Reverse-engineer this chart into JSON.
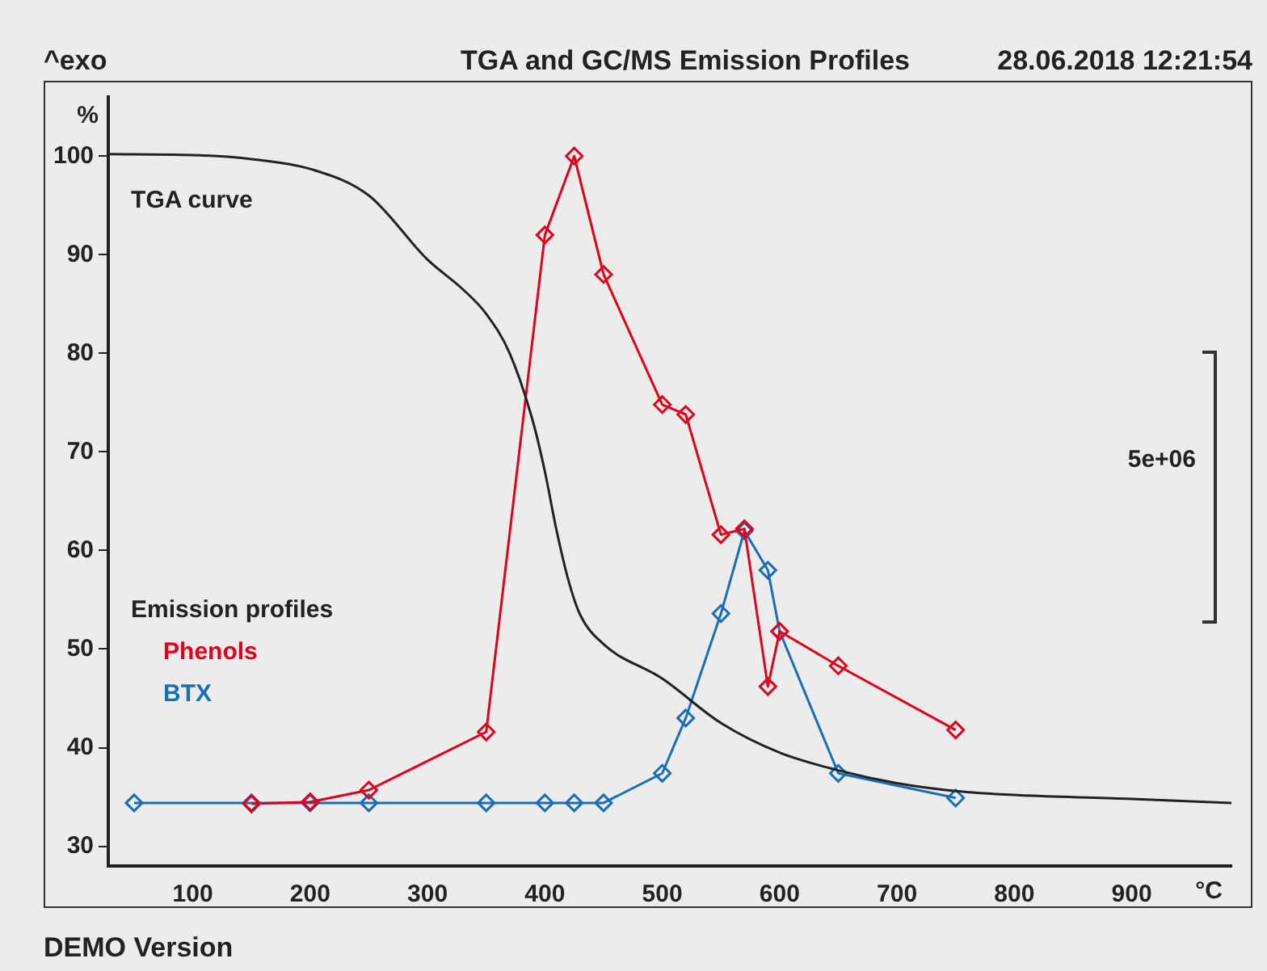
{
  "chart_data": {
    "type": "line",
    "title": "TGA and GC/MS Emission Profiles",
    "annotations": [
      "^exo",
      "28.06.2018 12:21:54",
      "5e+06",
      "DEMO Version"
    ],
    "ylabel": "%",
    "xlabel": "°C",
    "legend_title": "Emission profiles",
    "legend": "left",
    "xlim": [
      28,
      985
    ],
    "xticks": [
      100,
      200,
      300,
      400,
      500,
      600,
      700,
      800,
      900
    ],
    "ylim": [
      28,
      106
    ],
    "yticks": [
      30,
      40,
      50,
      60,
      70,
      80,
      90,
      100
    ],
    "grid": false,
    "series": [
      {
        "name": "TGA curve",
        "color": "#222222",
        "marker": "none",
        "x": [
          28,
          100,
          150,
          200,
          250,
          300,
          330,
          350,
          370,
          390,
          400,
          410,
          420,
          430,
          450,
          500,
          550,
          600,
          650,
          700,
          750,
          800,
          900,
          985
        ],
        "values": [
          100.2,
          100.1,
          99.7,
          98.7,
          96,
          89.5,
          86.5,
          84,
          80,
          73,
          68,
          62,
          57,
          53.5,
          50.5,
          47,
          42.5,
          39.5,
          37.7,
          36.4,
          35.6,
          35.2,
          34.8,
          34.4
        ]
      },
      {
        "name": "Phenols",
        "color": "#e3001b",
        "marker": "diamond",
        "x": [
          150,
          200,
          250,
          350,
          400,
          425,
          450,
          500,
          520,
          550,
          570,
          590,
          600,
          650,
          750
        ],
        "values": [
          34.3,
          34.5,
          35.7,
          41.6,
          92,
          100,
          88,
          74.8,
          73.8,
          61.6,
          62.2,
          46.2,
          51.8,
          48.3,
          41.8
        ]
      },
      {
        "name": "BTX",
        "color": "#1a6eb8",
        "marker": "diamond",
        "x": [
          50,
          150,
          200,
          250,
          350,
          400,
          425,
          450,
          500,
          520,
          550,
          570,
          590,
          600,
          650,
          750
        ],
        "values": [
          34.4,
          34.4,
          34.4,
          34.4,
          34.4,
          34.4,
          34.4,
          34.4,
          37.4,
          43,
          53.6,
          62,
          58,
          51.8,
          37.4,
          34.9
        ]
      }
    ]
  }
}
